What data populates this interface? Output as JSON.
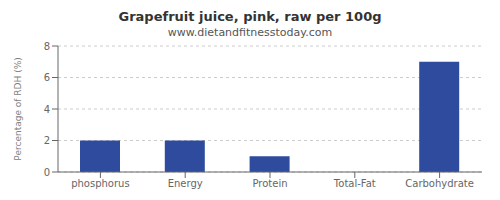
{
  "chart_data": {
    "type": "bar",
    "title": "Grapefruit juice, pink, raw per 100g",
    "subtitle": "www.dietandfitnesstoday.com",
    "categories": [
      "phosphorus",
      "Energy",
      "Protein",
      "Total-Fat",
      "Carbohydrate"
    ],
    "values": [
      2.0,
      2.0,
      1.0,
      0.0,
      7.0
    ],
    "color": "#2e4b9e",
    "ylabel": "Percentage of RDH (%)",
    "ylim": [
      0,
      8
    ],
    "yticks": [
      0,
      2,
      4,
      6,
      8
    ],
    "grid": true
  }
}
